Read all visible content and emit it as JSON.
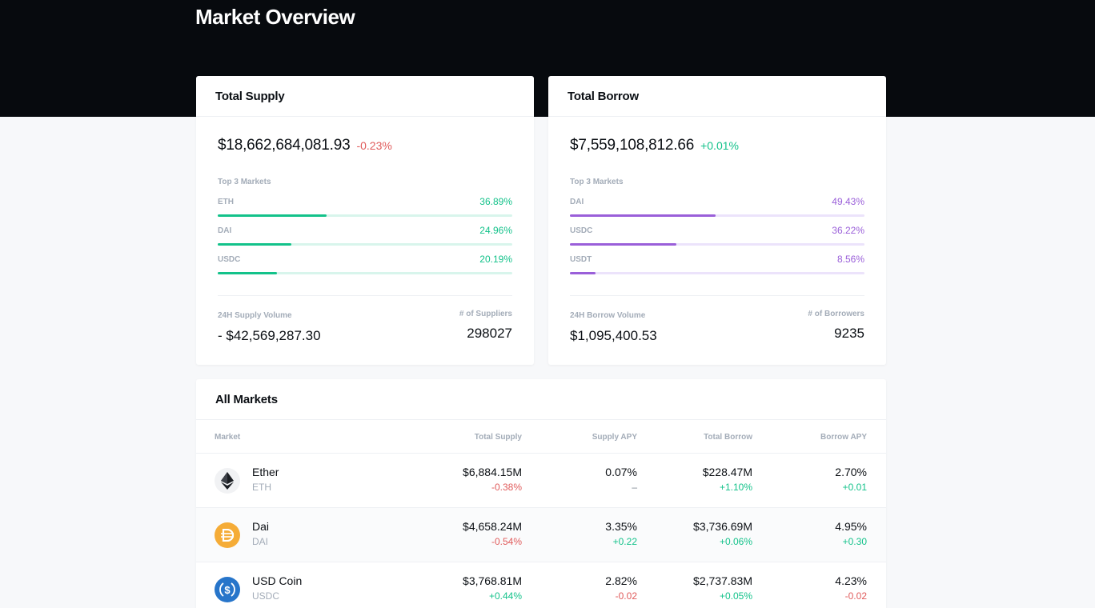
{
  "header": {
    "title": "Market Overview"
  },
  "supply": {
    "title": "Total Supply",
    "total": "$18,662,684,081.93",
    "change": "-0.23%",
    "top_label": "Top 3 Markets",
    "markets": [
      {
        "name": "ETH",
        "pct": "36.89%",
        "fraction": 0.3689
      },
      {
        "name": "DAI",
        "pct": "24.96%",
        "fraction": 0.2496
      },
      {
        "name": "USDC",
        "pct": "20.19%",
        "fraction": 0.2019
      }
    ],
    "volume_label": "24H Supply Volume",
    "volume": "- $42,569,287.30",
    "count_label": "# of Suppliers",
    "count": "298027"
  },
  "borrow": {
    "title": "Total Borrow",
    "total": "$7,559,108,812.66",
    "change": "+0.01%",
    "top_label": "Top 3 Markets",
    "markets": [
      {
        "name": "DAI",
        "pct": "49.43%",
        "fraction": 0.4943
      },
      {
        "name": "USDC",
        "pct": "36.22%",
        "fraction": 0.3622
      },
      {
        "name": "USDT",
        "pct": "8.56%",
        "fraction": 0.0856
      }
    ],
    "volume_label": "24H Borrow Volume",
    "volume": "$1,095,400.53",
    "count_label": "# of Borrowers",
    "count": "9235"
  },
  "all_markets": {
    "title": "All Markets",
    "columns": [
      "Market",
      "Total Supply",
      "Supply APY",
      "Total Borrow",
      "Borrow APY"
    ],
    "rows": [
      {
        "icon": "ether-icon",
        "name": "Ether",
        "symbol": "ETH",
        "total_supply": "$6,884.15M",
        "total_supply_change": "-0.38%",
        "supply_apy": "0.07%",
        "supply_apy_change": "–",
        "total_borrow": "$228.47M",
        "total_borrow_change": "+1.10%",
        "borrow_apy": "2.70%",
        "borrow_apy_change": "+0.01"
      },
      {
        "icon": "dai-icon",
        "name": "Dai",
        "symbol": "DAI",
        "total_supply": "$4,658.24M",
        "total_supply_change": "-0.54%",
        "supply_apy": "3.35%",
        "supply_apy_change": "+0.22",
        "total_borrow": "$3,736.69M",
        "total_borrow_change": "+0.06%",
        "borrow_apy": "4.95%",
        "borrow_apy_change": "+0.30"
      },
      {
        "icon": "usd-coin-icon",
        "name": "USD Coin",
        "symbol": "USDC",
        "total_supply": "$3,768.81M",
        "total_supply_change": "+0.44%",
        "supply_apy": "2.82%",
        "supply_apy_change": "-0.02",
        "total_borrow": "$2,737.83M",
        "total_borrow_change": "+0.05%",
        "borrow_apy": "4.23%",
        "borrow_apy_change": "-0.02"
      }
    ]
  },
  "colors": {
    "positive": "#13c28a",
    "negative": "#e05b5b",
    "borrow_accent": "#9a5fd9",
    "hero_bg": "#070a0e"
  }
}
